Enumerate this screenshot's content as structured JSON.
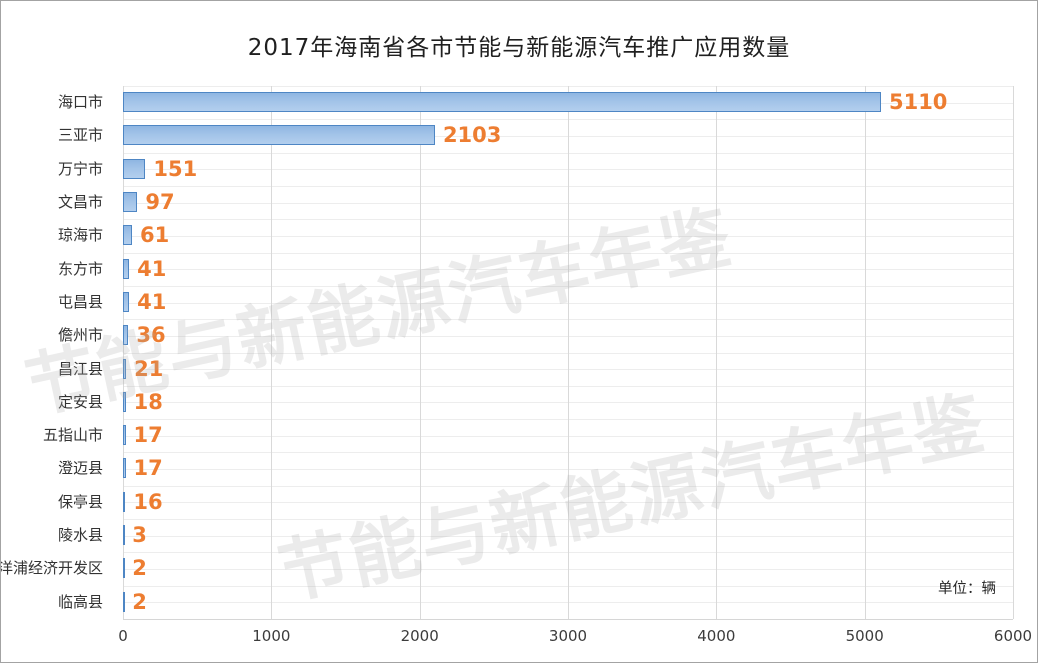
{
  "chart_data": {
    "type": "bar",
    "orientation": "horizontal",
    "title": "2017年海南省各市节能与新能源汽车推广应用数量",
    "categories": [
      "海口市",
      "三亚市",
      "万宁市",
      "文昌市",
      "琼海市",
      "东方市",
      "屯昌县",
      "儋州市",
      "昌江县",
      "定安县",
      "五指山市",
      "澄迈县",
      "保亭县",
      "陵水县",
      "洋浦经济开发区",
      "临高县"
    ],
    "values": [
      5110,
      2103,
      151,
      97,
      61,
      41,
      41,
      36,
      21,
      18,
      17,
      17,
      16,
      3,
      2,
      2
    ],
    "xlabel": "",
    "ylabel": "",
    "xlim": [
      0,
      6000
    ],
    "x_ticks": [
      0,
      1000,
      2000,
      3000,
      4000,
      5000,
      6000
    ],
    "grid": true,
    "legend": "none",
    "unit_label": "单位：辆",
    "watermark": "节能与新能源汽车年鉴",
    "colors": {
      "bar_fill_top": "#8fb6e2",
      "bar_fill_bottom": "#b3cfee",
      "bar_border": "#4e86c4",
      "value_label": "#ED7D31",
      "gridline_vertical": "#d9d9d9",
      "gridline_horizontal": "#ededed",
      "title_text": "#202020",
      "axis_text": "#3c3c3c"
    }
  }
}
